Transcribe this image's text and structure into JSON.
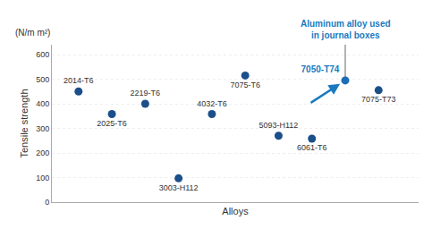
{
  "chart_data": {
    "type": "scatter",
    "x": [
      1,
      2,
      3,
      4,
      5,
      6,
      7,
      8,
      9,
      10
    ],
    "values": [
      450,
      358,
      400,
      97,
      358,
      515,
      270,
      258,
      495,
      455
    ],
    "point_labels": [
      "2014-T6",
      "2025-T6",
      "2219-T6",
      "3003-H112",
      "4032-T6",
      "7075-T6",
      "5093-H112",
      "6061-T6",
      "7050-T74",
      "7075-T73"
    ],
    "colors": [
      "#1b4f8a",
      "#1b4f8a",
      "#1b4f8a",
      "#1b4f8a",
      "#1b4f8a",
      "#1b4f8a",
      "#1b4f8a",
      "#1b4f8a",
      "#1b6db5",
      "#1b4f8a"
    ],
    "xlabel": "Alloys",
    "ylabel": "Tensile strength",
    "subtitle": "(N/m m²)",
    "xlim": [
      0.2,
      11.2
    ],
    "ylim": [
      0,
      640
    ],
    "yticks": [
      0,
      100,
      200,
      300,
      400,
      500,
      600
    ],
    "grid": true,
    "tick_labels": "y",
    "annotations": [
      {
        "text": "Aluminum alloy used\nin journal boxes",
        "x": 9,
        "y": 495,
        "color": "#1a7abf"
      }
    ]
  }
}
